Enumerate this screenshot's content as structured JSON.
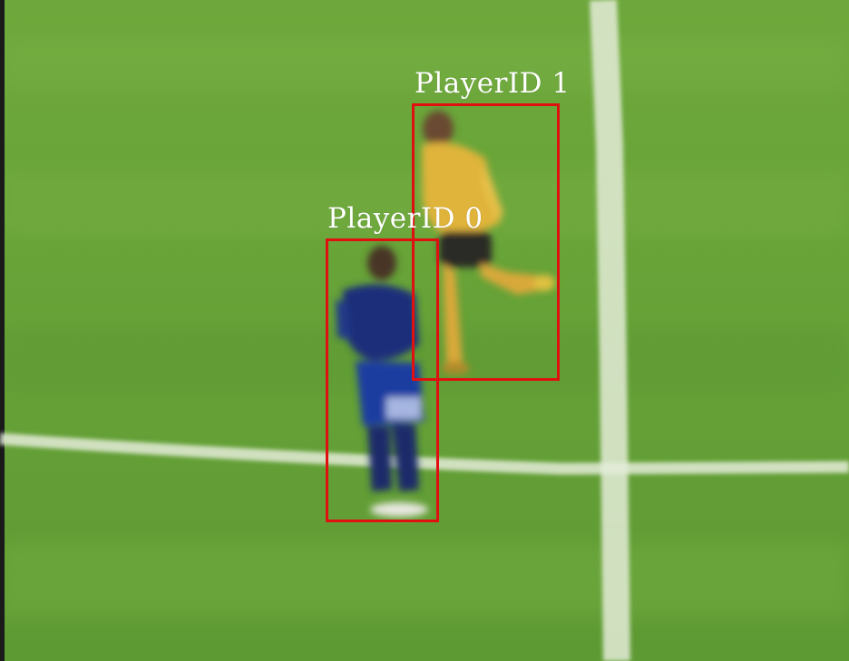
{
  "detections": [
    {
      "label": "PlayerID 0"
    },
    {
      "label": "PlayerID 1"
    }
  ],
  "colors": {
    "box": "#e01010",
    "label": "#ffffff",
    "pitch": "#6aa43a",
    "pitch_dark": "#5f9a33",
    "line": "#dfe9d3",
    "jersey_blue": "#1c2f7a",
    "jersey_yellow": "#e0b43a"
  }
}
